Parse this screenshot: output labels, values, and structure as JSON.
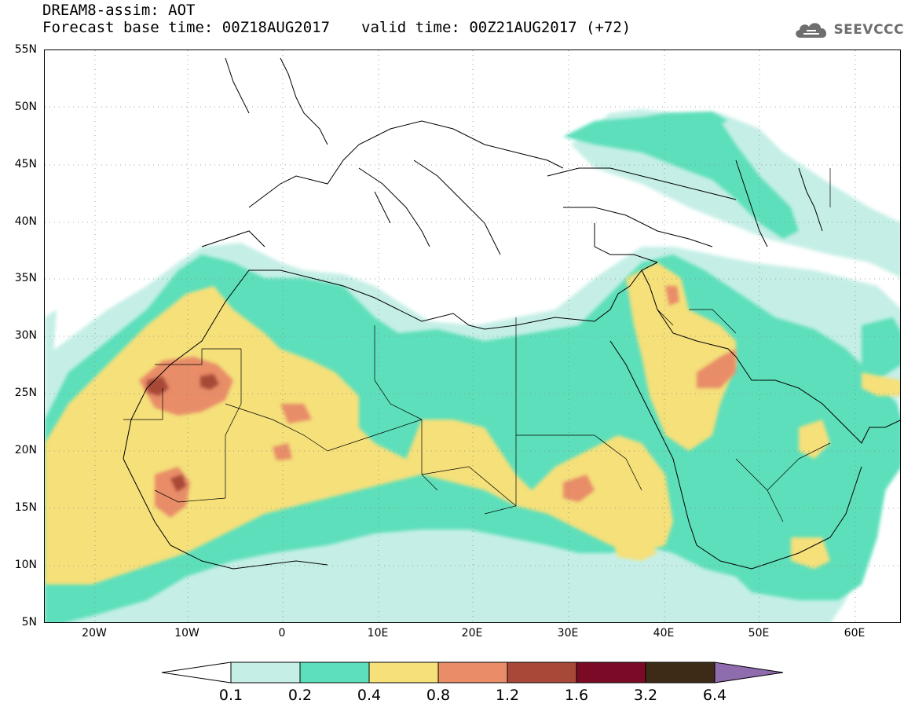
{
  "header": {
    "title": "DREAM8-assim: AOT",
    "base_time": "Forecast base time: 00Z18AUG2017",
    "valid_time": "valid time: 00Z21AUG2017 (+72)"
  },
  "logo": {
    "text": "SEEVCCC",
    "icon": "cloud-icon"
  },
  "map": {
    "lat_labels": [
      "55N",
      "50N",
      "45N",
      "40N",
      "35N",
      "30N",
      "25N",
      "20N",
      "15N",
      "10N",
      "5N"
    ],
    "lon_labels": [
      "20W",
      "10W",
      "0",
      "10E",
      "20E",
      "30E",
      "40E",
      "50E",
      "60E"
    ]
  },
  "colorbar": {
    "labels": [
      "0.1",
      "0.2",
      "0.4",
      "0.8",
      "1.2",
      "1.6",
      "3.2",
      "6.4"
    ],
    "colors": {
      "below": "#ffffff",
      "c1": "#c5efe6",
      "c2": "#5ddfbb",
      "c3": "#f5e07a",
      "c4": "#e88d67",
      "c5": "#a84839",
      "c6": "#7a0a25",
      "c7": "#3d2a17",
      "above": "#8e6cae"
    }
  }
}
